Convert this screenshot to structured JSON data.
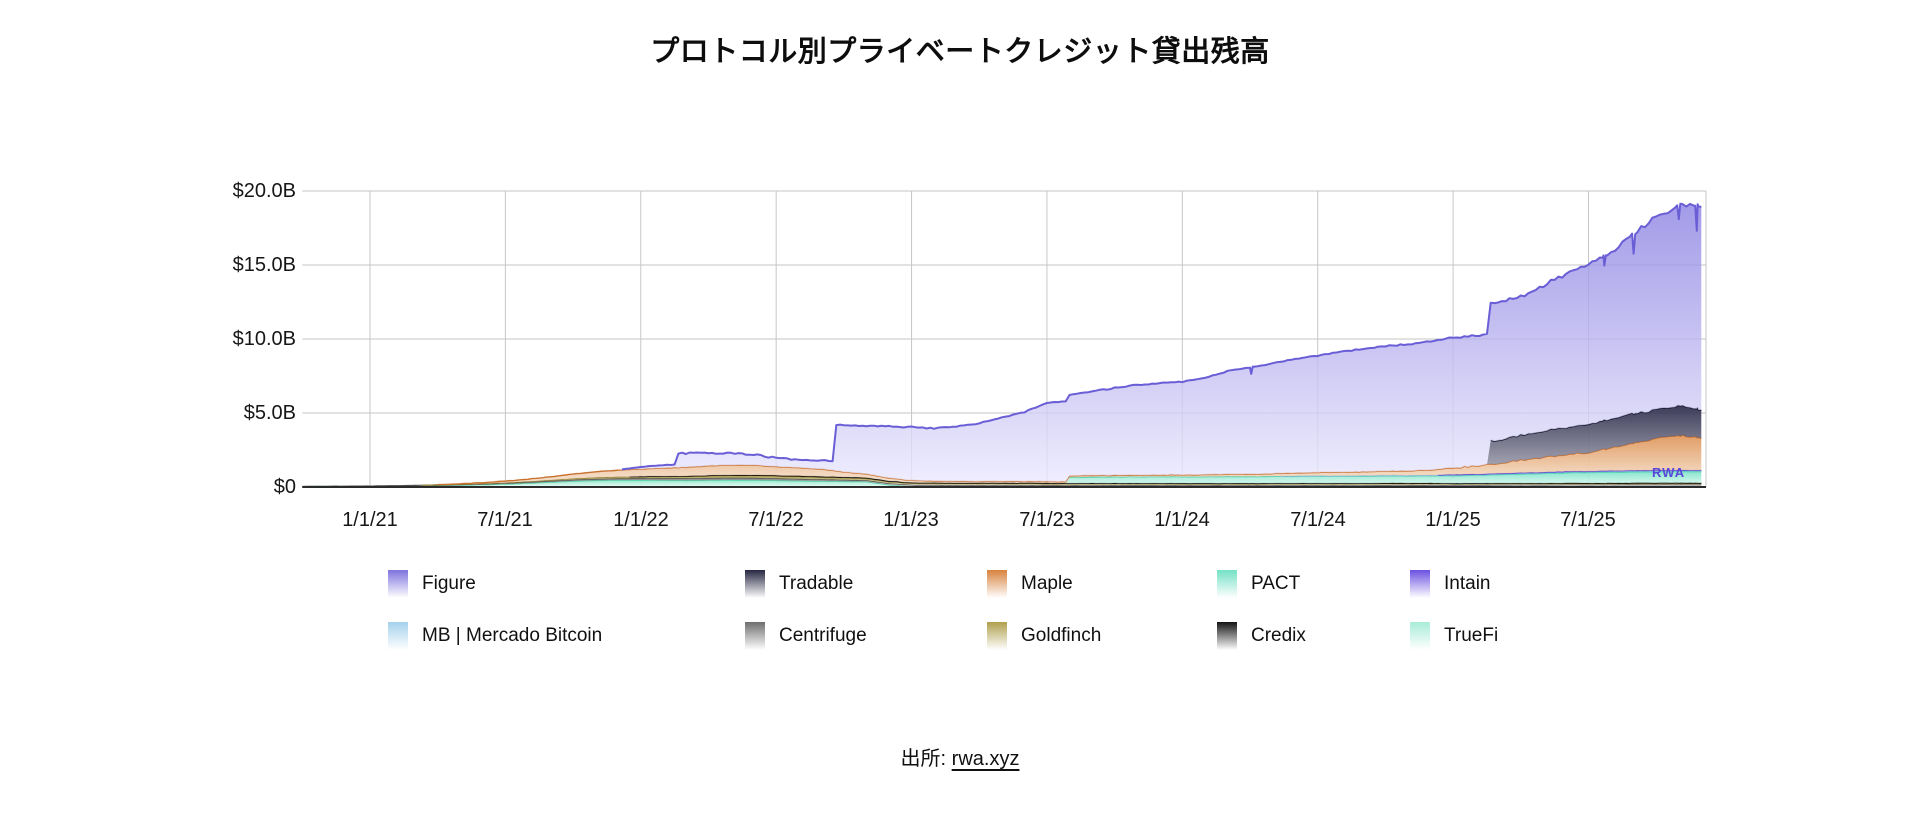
{
  "title": "プロトコル別プライベートクレジット貸出残高",
  "source": {
    "prefix": "出所: ",
    "link": "rwa.xyz"
  },
  "watermark": "RWA",
  "legend": [
    {
      "label": "Figure",
      "color": "#7f73df"
    },
    {
      "label": "Tradable",
      "color": "#262642"
    },
    {
      "label": "Maple",
      "color": "#d8823e"
    },
    {
      "label": "PACT",
      "color": "#74e0c6"
    },
    {
      "label": "Intain",
      "color": "#6c51e0"
    },
    {
      "label": "MB | Mercado Bitcoin",
      "color": "#a5d2ec"
    },
    {
      "label": "Centrifuge",
      "color": "#6e6e6e"
    },
    {
      "label": "Goldfinch",
      "color": "#b0a04e"
    },
    {
      "label": "Credix",
      "color": "#141414"
    },
    {
      "label": "TrueFi",
      "color": "#a9ecd8"
    }
  ],
  "chart_data": {
    "type": "area",
    "stacked": true,
    "unit": "USD billions",
    "grid": true,
    "grid_color": "#c6c6c6",
    "axis_color": "#2b2b2b",
    "x_start_month": "2020-10",
    "x_months_total": 62,
    "ylim": [
      0,
      20
    ],
    "yticks": [
      {
        "label": "$0",
        "v": 0
      },
      {
        "label": "$5.0B",
        "v": 5
      },
      {
        "label": "$10.0B",
        "v": 10
      },
      {
        "label": "$15.0B",
        "v": 15
      },
      {
        "label": "$20.0B",
        "v": 20
      }
    ],
    "xticks": [
      {
        "label": "1/1/21",
        "m": 3
      },
      {
        "label": "7/1/21",
        "m": 9
      },
      {
        "label": "1/1/22",
        "m": 15
      },
      {
        "label": "7/1/22",
        "m": 21
      },
      {
        "label": "1/1/23",
        "m": 27
      },
      {
        "label": "7/1/23",
        "m": 33
      },
      {
        "label": "1/1/24",
        "m": 39
      },
      {
        "label": "7/1/24",
        "m": 45
      },
      {
        "label": "1/1/25",
        "m": 51
      },
      {
        "label": "7/1/25",
        "m": 57
      }
    ],
    "series": [
      {
        "name": "TrueFi",
        "stroke": "#4fd0a5",
        "fill_top": "#8ae6c8",
        "fill_bottom": "#ebfbf6",
        "fill_opacity": 0.92,
        "values": [
          0.02,
          0.03,
          0.04,
          0.05,
          0.06,
          0.08,
          0.1,
          0.13,
          0.16,
          0.2,
          0.26,
          0.33,
          0.4,
          0.45,
          0.47,
          0.47,
          0.46,
          0.45,
          0.46,
          0.48,
          0.47,
          0.45,
          0.42,
          0.4,
          0.38,
          0.36,
          0.15,
          0.05,
          0.04,
          0.03,
          0.03,
          0.03,
          0.03,
          0.02,
          0.02,
          0.02,
          0.02,
          0.02,
          0.02,
          0.02,
          0.02,
          0.02,
          0.02,
          0.02,
          0.02,
          0.02,
          0.02,
          0.02,
          0.02,
          0.02,
          0.02,
          0.02,
          0.02,
          0.02,
          0.02,
          0.02,
          0.02,
          0.02,
          0.02,
          0.02,
          0.02,
          0.02,
          0.02
        ]
      },
      {
        "name": "Centrifuge",
        "stroke": "#4e4e4e",
        "fill_top": "#787878",
        "fill_bottom": "#e3e3e3",
        "fill_opacity": 0.92,
        "values": [
          0.01,
          0.01,
          0.01,
          0.01,
          0.02,
          0.02,
          0.03,
          0.04,
          0.05,
          0.06,
          0.07,
          0.08,
          0.09,
          0.1,
          0.11,
          0.12,
          0.13,
          0.14,
          0.15,
          0.15,
          0.15,
          0.14,
          0.13,
          0.12,
          0.11,
          0.1,
          0.1,
          0.1,
          0.1,
          0.1,
          0.1,
          0.1,
          0.1,
          0.1,
          0.1,
          0.1,
          0.1,
          0.1,
          0.1,
          0.1,
          0.1,
          0.1,
          0.1,
          0.11,
          0.11,
          0.11,
          0.11,
          0.11,
          0.12,
          0.12,
          0.12,
          0.12,
          0.12,
          0.13,
          0.13,
          0.13,
          0.14,
          0.14,
          0.14,
          0.15,
          0.15,
          0.15,
          0.15
        ]
      },
      {
        "name": "Goldfinch",
        "stroke": "#8f7e35",
        "fill_top": "#b2a452",
        "fill_bottom": "#f0ead4",
        "fill_opacity": 0.92,
        "values": [
          0,
          0,
          0,
          0,
          0,
          0,
          0.01,
          0.02,
          0.03,
          0.04,
          0.05,
          0.06,
          0.08,
          0.1,
          0.11,
          0.11,
          0.12,
          0.13,
          0.14,
          0.15,
          0.15,
          0.15,
          0.15,
          0.14,
          0.13,
          0.12,
          0.11,
          0.1,
          0.1,
          0.1,
          0.1,
          0.1,
          0.1,
          0.1,
          0.1,
          0.1,
          0.1,
          0.1,
          0.1,
          0.09,
          0.09,
          0.09,
          0.09,
          0.09,
          0.09,
          0.09,
          0.09,
          0.09,
          0.09,
          0.09,
          0.09,
          0.08,
          0.08,
          0.08,
          0.08,
          0.08,
          0.08,
          0.08,
          0.08,
          0.08,
          0.08,
          0.08,
          0.08
        ]
      },
      {
        "name": "Credix",
        "stroke": "#000000",
        "fill_top": "#1a1a1a",
        "fill_bottom": "#a8a8a8",
        "fill_opacity": 0.92,
        "values": [
          0,
          0,
          0,
          0,
          0,
          0,
          0,
          0,
          0,
          0,
          0,
          0,
          0,
          0,
          0,
          0.01,
          0.02,
          0.02,
          0.03,
          0.03,
          0.04,
          0.04,
          0.05,
          0.05,
          0.05,
          0.05,
          0.05,
          0.05,
          0.05,
          0.05,
          0.05,
          0.05,
          0.05,
          0.05,
          0.04,
          0.04,
          0.04,
          0.04,
          0.04,
          0.04,
          0.04,
          0.04,
          0.04,
          0.04,
          0.04,
          0.04,
          0.04,
          0.04,
          0.04,
          0.04,
          0.04,
          0.03,
          0.03,
          0.03,
          0.03,
          0.03,
          0.03,
          0.03,
          0.03,
          0.03,
          0.03,
          0.03,
          0.03
        ]
      },
      {
        "name": "PACT",
        "stroke": "#43cdaa",
        "fill_top": "#7ee3c9",
        "fill_bottom": "#e6faf4",
        "fill_opacity": 0.92,
        "values": [
          0,
          0,
          0,
          0,
          0,
          0,
          0,
          0,
          0,
          0,
          0,
          0,
          0,
          0,
          0,
          0,
          0,
          0,
          0,
          0,
          0,
          0,
          0,
          0,
          0,
          0,
          0,
          0,
          0,
          0,
          0,
          0,
          0,
          0,
          0.4,
          0.42,
          0.43,
          0.44,
          0.45,
          0.45,
          0.45,
          0.46,
          0.46,
          0.47,
          0.47,
          0.48,
          0.48,
          0.48,
          0.49,
          0.49,
          0.5,
          0.52,
          0.55,
          0.58,
          0.62,
          0.66,
          0.7,
          0.72,
          0.74,
          0.75,
          0.76,
          0.77,
          0.77
        ]
      },
      {
        "name": "MB | Mercado Bitcoin",
        "stroke": "#7fb8dd",
        "fill_top": "#a9d4ee",
        "fill_bottom": "#eef7fd",
        "fill_opacity": 0.92,
        "values": [
          0,
          0,
          0,
          0,
          0,
          0,
          0,
          0,
          0,
          0,
          0,
          0,
          0,
          0,
          0,
          0,
          0,
          0,
          0,
          0,
          0,
          0,
          0,
          0,
          0,
          0,
          0,
          0,
          0,
          0,
          0,
          0,
          0,
          0,
          0,
          0,
          0,
          0,
          0,
          0,
          0,
          0,
          0,
          0,
          0.02,
          0.02,
          0.02,
          0.03,
          0.03,
          0.03,
          0.03,
          0.04,
          0.04,
          0.04,
          0.05,
          0.05,
          0.05,
          0.05,
          0.06,
          0.06,
          0.06,
          0.06,
          0.06
        ]
      },
      {
        "name": "Intain",
        "stroke": "#5940d2",
        "fill_top": "#7a63e6",
        "fill_bottom": "#efecfd",
        "fill_opacity": 0.92,
        "values": [
          0,
          0,
          0,
          0,
          0,
          0,
          0,
          0,
          0,
          0,
          0,
          0,
          0,
          0,
          0,
          0,
          0,
          0,
          0,
          0,
          0,
          0,
          0,
          0,
          0,
          0,
          0,
          0,
          0,
          0,
          0,
          0,
          0,
          0,
          0,
          0,
          0,
          0,
          0,
          0,
          0,
          0,
          0,
          0,
          0,
          0,
          0,
          0,
          0,
          0,
          0,
          0.03,
          0.03,
          0.03,
          0.03,
          0.03,
          0.03,
          0.03,
          0.03,
          0.03,
          0.03,
          0.03,
          0.03
        ]
      },
      {
        "name": "Maple",
        "stroke": "#c9712f",
        "fill_top": "#de9458",
        "fill_bottom": "#f8e8d8",
        "fill_opacity": 0.92,
        "values": [
          0,
          0,
          0,
          0,
          0,
          0,
          0.01,
          0.03,
          0.06,
          0.1,
          0.15,
          0.22,
          0.3,
          0.38,
          0.45,
          0.5,
          0.55,
          0.6,
          0.65,
          0.68,
          0.66,
          0.6,
          0.55,
          0.5,
          0.35,
          0.25,
          0.2,
          0.15,
          0.12,
          0.1,
          0.1,
          0.1,
          0.1,
          0.1,
          0.1,
          0.1,
          0.1,
          0.1,
          0.11,
          0.12,
          0.13,
          0.15,
          0.16,
          0.18,
          0.2,
          0.22,
          0.24,
          0.26,
          0.28,
          0.3,
          0.35,
          0.45,
          0.55,
          0.7,
          0.85,
          1.0,
          1.15,
          1.25,
          1.55,
          1.85,
          2.15,
          2.35,
          2.2
        ]
      },
      {
        "name": "Tradable",
        "stroke": "#121228",
        "fill_top": "#2c2c4c",
        "fill_bottom": "#c2c2cc",
        "fill_opacity": 0.92,
        "values": [
          0,
          0,
          0,
          0,
          0,
          0,
          0,
          0,
          0,
          0,
          0,
          0,
          0,
          0,
          0,
          0,
          0,
          0,
          0,
          0,
          0,
          0,
          0,
          0,
          0,
          0,
          0,
          0,
          0,
          0,
          0,
          0,
          0,
          0,
          0,
          0,
          0,
          0,
          0,
          0,
          0,
          0,
          0,
          0,
          0,
          0,
          0,
          0,
          0,
          0,
          0,
          0,
          0,
          1.6,
          1.7,
          1.75,
          1.85,
          1.9,
          1.95,
          2.0,
          1.95,
          2.0,
          1.9
        ]
      },
      {
        "name": "Figure",
        "stroke": "#6a5ed6",
        "fill_top": "#8c82e2",
        "fill_bottom": "#eceafd",
        "fill_opacity": 0.8,
        "values": [
          0,
          0,
          0,
          0,
          0,
          0,
          0,
          0,
          0,
          0,
          0,
          0,
          0,
          0,
          0,
          0.15,
          0.2,
          0.95,
          0.85,
          0.8,
          0.7,
          0.6,
          0.55,
          0.6,
          3.15,
          3.25,
          3.5,
          3.6,
          3.55,
          3.7,
          3.95,
          4.3,
          4.7,
          5.3,
          5.45,
          5.7,
          5.9,
          6.1,
          6.2,
          6.3,
          6.55,
          6.95,
          7.2,
          7.45,
          7.7,
          7.9,
          8.15,
          8.3,
          8.45,
          8.55,
          8.7,
          8.8,
          8.8,
          9.3,
          9.4,
          9.85,
          10.35,
          10.8,
          11.2,
          12.2,
          12.95,
          13.5,
          13.85
        ]
      }
    ],
    "hard_steps": [
      {
        "series": "Figure",
        "m": 16.6
      },
      {
        "series": "Figure",
        "m": 23.6
      },
      {
        "series": "PACT",
        "m": 33.85
      },
      {
        "series": "Tradable",
        "m": 52.6
      },
      {
        "series": "Figure",
        "m": 52.6
      }
    ],
    "notches": [
      {
        "m": 42.05,
        "drop": 0.45
      },
      {
        "m": 57.7,
        "drop": 0.6
      },
      {
        "m": 59.0,
        "drop": 1.3
      },
      {
        "m": 61.0,
        "drop": 1.0
      },
      {
        "m": 61.8,
        "drop": 1.9
      }
    ]
  }
}
